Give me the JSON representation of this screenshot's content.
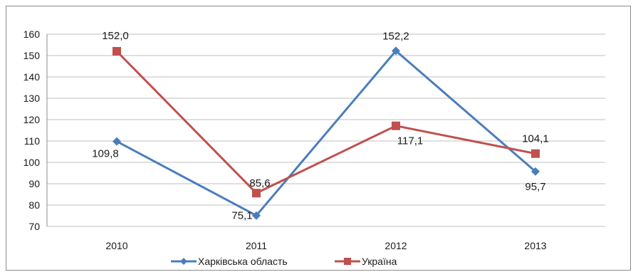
{
  "chart_data": {
    "type": "line",
    "title": "",
    "xlabel": "",
    "ylabel": "",
    "categories": [
      "2010",
      "2011",
      "2012",
      "2013"
    ],
    "ylim": [
      70,
      160
    ],
    "yticks": [
      70,
      80,
      90,
      100,
      110,
      120,
      130,
      140,
      150,
      160
    ],
    "grid": true,
    "legend_position": "bottom",
    "series": [
      {
        "name": "Харківська область",
        "values": [
          109.8,
          75.1,
          152.2,
          95.7
        ],
        "labels": [
          "109,8",
          "75,1",
          "152,2",
          "95,7"
        ],
        "color": "#4a7ebb",
        "marker": "diamond"
      },
      {
        "name": "Україна",
        "values": [
          152.0,
          85.6,
          117.1,
          104.1
        ],
        "labels": [
          "152,0",
          "85,6",
          "117,1",
          "104,1"
        ],
        "color": "#c0504d",
        "marker": "square"
      }
    ]
  }
}
